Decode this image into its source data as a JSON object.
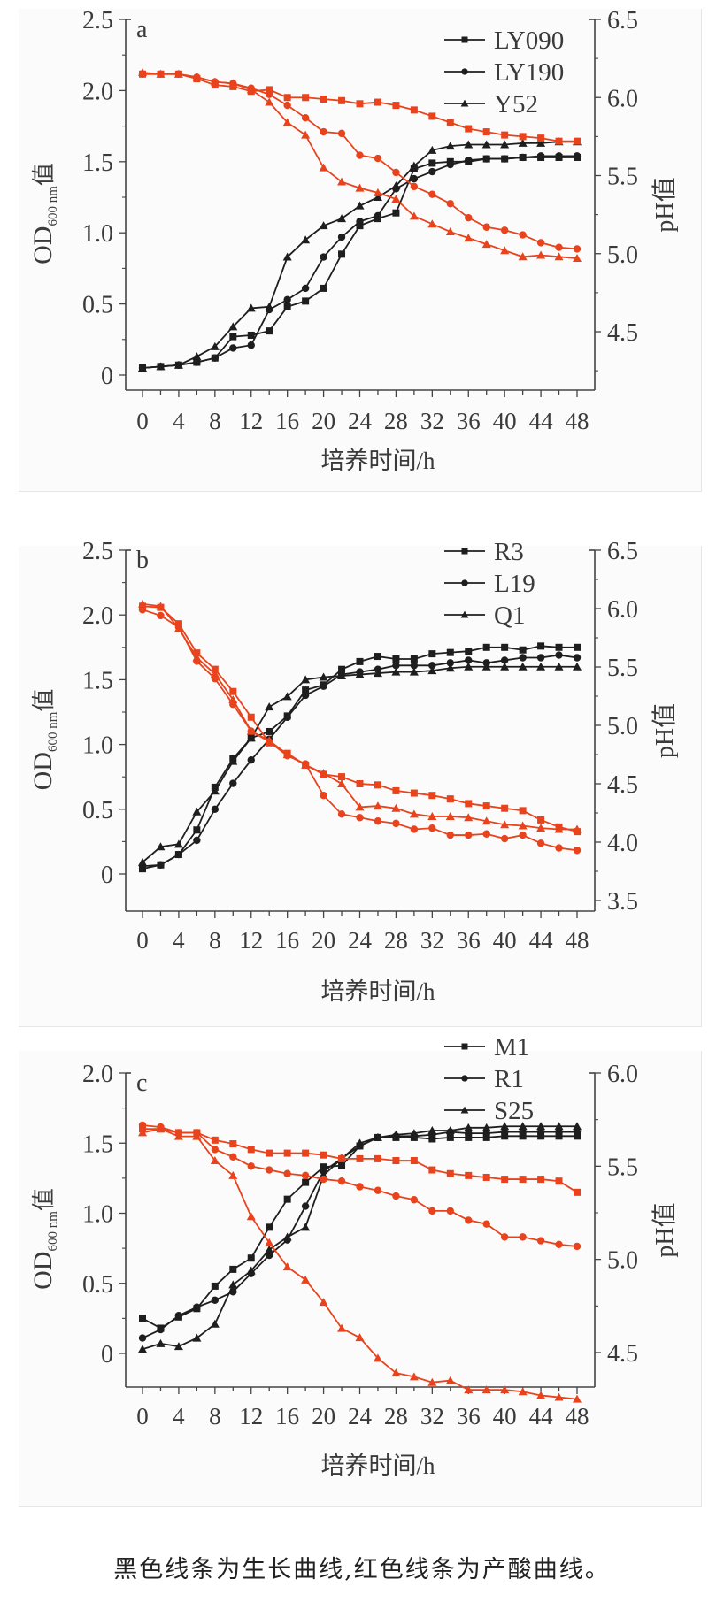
{
  "caption": "黑色线条为生长曲线,红色线条为产酸曲线。",
  "colors": {
    "growth": "#1e1e1e",
    "acid": "#e8431c",
    "axis": "#444444"
  },
  "chart_data": [
    {
      "type": "line",
      "panel_label": "a",
      "title": "",
      "xlabel": "培养时间/h",
      "ylabel_left": "OD600 nm值",
      "ylabel_left_main": "OD",
      "ylabel_left_sub": "600 nm",
      "ylabel_left_suffix": "值",
      "ylabel_right": "pH值",
      "x": [
        0,
        2,
        4,
        6,
        8,
        10,
        12,
        14,
        16,
        18,
        20,
        22,
        24,
        26,
        28,
        30,
        32,
        34,
        36,
        38,
        40,
        42,
        44,
        46,
        48
      ],
      "xticks": [
        0,
        4,
        8,
        12,
        16,
        20,
        24,
        28,
        32,
        36,
        40,
        44,
        48
      ],
      "ylim_left": [
        -0.1,
        2.5
      ],
      "yticks_left": [
        0,
        0.5,
        1.0,
        1.5,
        2.0,
        2.5
      ],
      "yticklabels_left": [
        "0",
        "0.5",
        "1.0",
        "1.5",
        "2.0",
        "2.5"
      ],
      "ylim_right": [
        4.125,
        6.5
      ],
      "yticks_right": [
        4.5,
        5.0,
        5.5,
        6.0,
        6.5
      ],
      "yticklabels_right": [
        "4.5",
        "5.0",
        "5.5",
        "6.0",
        "6.5"
      ],
      "legend": {
        "position": "top-right",
        "entries": [
          "LY090",
          "LY190",
          "Y52"
        ]
      },
      "series": [
        {
          "name": "LY090",
          "kind": "growth",
          "marker": "square",
          "axis": "left",
          "values": [
            0.05,
            0.06,
            0.07,
            0.09,
            0.12,
            0.27,
            0.28,
            0.31,
            0.48,
            0.52,
            0.61,
            0.85,
            1.05,
            1.1,
            1.14,
            1.45,
            1.49,
            1.5,
            1.5,
            1.52,
            1.52,
            1.53,
            1.53,
            1.53,
            1.53
          ]
        },
        {
          "name": "LY190",
          "kind": "growth",
          "marker": "circle",
          "axis": "left",
          "values": [
            0.05,
            0.06,
            0.07,
            0.09,
            0.12,
            0.19,
            0.21,
            0.46,
            0.53,
            0.61,
            0.83,
            0.97,
            1.08,
            1.12,
            1.31,
            1.38,
            1.43,
            1.48,
            1.51,
            1.52,
            1.52,
            1.53,
            1.54,
            1.54,
            1.54
          ]
        },
        {
          "name": "Y52",
          "kind": "growth",
          "marker": "triangle",
          "axis": "left",
          "values": [
            0.05,
            0.06,
            0.07,
            0.13,
            0.2,
            0.34,
            0.47,
            0.48,
            0.83,
            0.95,
            1.05,
            1.1,
            1.19,
            1.25,
            1.33,
            1.47,
            1.58,
            1.61,
            1.62,
            1.62,
            1.62,
            1.63,
            1.63,
            1.64,
            1.64
          ]
        },
        {
          "name": "LY090 pH",
          "kind": "acid",
          "marker": "square",
          "axis": "right",
          "values": [
            6.15,
            6.15,
            6.15,
            6.12,
            6.08,
            6.07,
            6.04,
            6.05,
            6.0,
            6.0,
            5.99,
            5.98,
            5.96,
            5.97,
            5.95,
            5.92,
            5.88,
            5.84,
            5.8,
            5.78,
            5.76,
            5.75,
            5.74,
            5.72,
            5.72
          ]
        },
        {
          "name": "LY190 pH",
          "kind": "acid",
          "marker": "circle",
          "axis": "right",
          "values": [
            6.15,
            6.15,
            6.15,
            6.13,
            6.1,
            6.09,
            6.06,
            6.02,
            5.95,
            5.87,
            5.78,
            5.77,
            5.63,
            5.61,
            5.52,
            5.43,
            5.38,
            5.32,
            5.23,
            5.17,
            5.15,
            5.12,
            5.07,
            5.04,
            5.03
          ]
        },
        {
          "name": "Y52 pH",
          "kind": "acid",
          "marker": "triangle",
          "axis": "right",
          "values": [
            6.16,
            6.15,
            6.15,
            6.13,
            6.1,
            6.09,
            6.05,
            5.97,
            5.84,
            5.76,
            5.55,
            5.46,
            5.42,
            5.39,
            5.35,
            5.24,
            5.19,
            5.14,
            5.1,
            5.06,
            5.02,
            4.98,
            4.99,
            4.98,
            4.97
          ]
        }
      ]
    },
    {
      "type": "line",
      "panel_label": "b",
      "title": "",
      "xlabel": "培养时间/h",
      "ylabel_left": "OD600 nm值",
      "ylabel_left_main": "OD",
      "ylabel_left_sub": "600 nm",
      "ylabel_left_suffix": "值",
      "ylabel_right": "pH值",
      "x": [
        0,
        2,
        4,
        6,
        8,
        10,
        12,
        14,
        16,
        18,
        20,
        22,
        24,
        26,
        28,
        30,
        32,
        34,
        36,
        38,
        40,
        42,
        44,
        46,
        48
      ],
      "xticks": [
        0,
        4,
        8,
        12,
        16,
        20,
        24,
        28,
        32,
        36,
        40,
        44,
        48
      ],
      "ylim_left": [
        -0.1,
        2.5
      ],
      "yticks_left": [
        0,
        0.5,
        1.0,
        1.5,
        2.0,
        2.5
      ],
      "yticklabels_left": [
        "0",
        "0.5",
        "1.0",
        "1.5",
        "2.0",
        "2.5"
      ],
      "ylim_right": [
        3.5,
        6.5
      ],
      "yticks_right": [
        3.5,
        4.0,
        4.5,
        5.0,
        5.5,
        6.0,
        6.5
      ],
      "yticklabels_right": [
        "3.5",
        "4.0",
        "4.5",
        "5.0",
        "5.5",
        "6.0",
        "6.5"
      ],
      "legend": {
        "position": "top-right",
        "entries": [
          "R3",
          "L19",
          "Q1"
        ]
      },
      "series": [
        {
          "name": "R3",
          "kind": "growth",
          "marker": "square",
          "axis": "left",
          "values": [
            0.04,
            0.07,
            0.15,
            0.34,
            0.67,
            0.89,
            1.05,
            1.1,
            1.22,
            1.42,
            1.46,
            1.58,
            1.64,
            1.68,
            1.66,
            1.66,
            1.7,
            1.71,
            1.72,
            1.75,
            1.75,
            1.73,
            1.76,
            1.75,
            1.75
          ]
        },
        {
          "name": "L19",
          "kind": "growth",
          "marker": "circle",
          "axis": "left",
          "values": [
            0.06,
            0.07,
            0.15,
            0.26,
            0.5,
            0.7,
            0.88,
            1.04,
            1.21,
            1.38,
            1.45,
            1.54,
            1.56,
            1.58,
            1.61,
            1.61,
            1.61,
            1.63,
            1.65,
            1.63,
            1.65,
            1.67,
            1.67,
            1.69,
            1.67
          ]
        },
        {
          "name": "Q1",
          "kind": "growth",
          "marker": "triangle",
          "axis": "left",
          "values": [
            0.09,
            0.21,
            0.23,
            0.48,
            0.64,
            0.87,
            1.05,
            1.29,
            1.37,
            1.5,
            1.52,
            1.53,
            1.54,
            1.55,
            1.56,
            1.56,
            1.57,
            1.59,
            1.6,
            1.6,
            1.6,
            1.6,
            1.6,
            1.6,
            1.6
          ]
        },
        {
          "name": "R3 pH",
          "kind": "acid",
          "marker": "square",
          "axis": "right",
          "values": [
            6.02,
            6.01,
            5.87,
            5.62,
            5.48,
            5.29,
            5.07,
            4.85,
            4.76,
            4.66,
            4.58,
            4.56,
            4.5,
            4.49,
            4.44,
            4.42,
            4.4,
            4.37,
            4.33,
            4.31,
            4.29,
            4.27,
            4.19,
            4.13,
            4.09
          ]
        },
        {
          "name": "L19 pH",
          "kind": "acid",
          "marker": "circle",
          "axis": "right",
          "values": [
            5.99,
            5.94,
            5.84,
            5.55,
            5.4,
            5.18,
            4.95,
            4.86,
            4.74,
            4.67,
            4.4,
            4.24,
            4.21,
            4.18,
            4.16,
            4.11,
            4.12,
            4.06,
            4.06,
            4.07,
            4.03,
            4.06,
            3.99,
            3.95,
            3.93
          ]
        },
        {
          "name": "Q1 pH",
          "kind": "acid",
          "marker": "triangle",
          "axis": "right",
          "values": [
            6.04,
            6.02,
            5.83,
            5.58,
            5.44,
            5.22,
            4.95,
            4.87,
            4.75,
            4.66,
            4.59,
            4.5,
            4.3,
            4.31,
            4.29,
            4.24,
            4.22,
            4.22,
            4.21,
            4.18,
            4.15,
            4.14,
            4.12,
            4.11,
            4.11
          ]
        }
      ]
    },
    {
      "type": "line",
      "panel_label": "c",
      "title": "",
      "xlabel": "培养时间/h",
      "ylabel_left": "OD600 nm值",
      "ylabel_left_main": "OD",
      "ylabel_left_sub": "600 nm",
      "ylabel_left_suffix": "值",
      "ylabel_right": "pH值",
      "x": [
        0,
        2,
        4,
        6,
        8,
        10,
        12,
        14,
        16,
        18,
        20,
        22,
        24,
        26,
        28,
        30,
        32,
        34,
        36,
        38,
        40,
        42,
        44,
        46,
        48
      ],
      "xticks": [
        0,
        4,
        8,
        12,
        16,
        20,
        24,
        28,
        32,
        36,
        40,
        44,
        48
      ],
      "ylim_left": [
        -0.1,
        2.0
      ],
      "yticks_left": [
        0,
        0.5,
        1.0,
        1.5,
        2.0
      ],
      "yticklabels_left": [
        "0",
        "0.5",
        "1.0",
        "1.5",
        "2.0"
      ],
      "ylim_right": [
        4.25,
        6.0
      ],
      "yticks_right": [
        4.5,
        5.0,
        5.5,
        6.0
      ],
      "yticklabels_right": [
        "4.5",
        "5.0",
        "5.5",
        "6.0"
      ],
      "legend": {
        "position": "top-right",
        "entries": [
          "M1",
          "R1",
          "S25"
        ]
      },
      "series": [
        {
          "name": "M1",
          "kind": "growth",
          "marker": "square",
          "axis": "left",
          "values": [
            0.25,
            0.18,
            0.26,
            0.32,
            0.48,
            0.6,
            0.68,
            0.9,
            1.1,
            1.22,
            1.33,
            1.34,
            1.48,
            1.54,
            1.54,
            1.54,
            1.53,
            1.54,
            1.54,
            1.54,
            1.55,
            1.55,
            1.55,
            1.55,
            1.55
          ]
        },
        {
          "name": "R1",
          "kind": "growth",
          "marker": "circle",
          "axis": "left",
          "values": [
            0.11,
            0.17,
            0.27,
            0.33,
            0.38,
            0.44,
            0.57,
            0.7,
            0.81,
            1.05,
            1.3,
            1.39,
            1.48,
            1.54,
            1.55,
            1.55,
            1.56,
            1.58,
            1.57,
            1.57,
            1.58,
            1.58,
            1.58,
            1.58,
            1.58
          ]
        },
        {
          "name": "S25",
          "kind": "growth",
          "marker": "triangle",
          "axis": "left",
          "values": [
            0.03,
            0.07,
            0.05,
            0.11,
            0.21,
            0.49,
            0.59,
            0.74,
            0.83,
            0.9,
            1.27,
            1.39,
            1.5,
            1.54,
            1.56,
            1.57,
            1.59,
            1.59,
            1.61,
            1.61,
            1.62,
            1.62,
            1.62,
            1.62,
            1.62
          ]
        },
        {
          "name": "M1 pH",
          "kind": "acid",
          "marker": "square",
          "axis": "right",
          "values": [
            5.7,
            5.7,
            5.68,
            5.68,
            5.64,
            5.62,
            5.59,
            5.57,
            5.57,
            5.57,
            5.56,
            5.54,
            5.54,
            5.54,
            5.53,
            5.53,
            5.48,
            5.46,
            5.45,
            5.44,
            5.43,
            5.43,
            5.43,
            5.42,
            5.36
          ]
        },
        {
          "name": "R1 pH",
          "kind": "acid",
          "marker": "circle",
          "axis": "right",
          "values": [
            5.72,
            5.71,
            5.68,
            5.68,
            5.59,
            5.55,
            5.5,
            5.48,
            5.46,
            5.45,
            5.43,
            5.42,
            5.39,
            5.37,
            5.34,
            5.32,
            5.26,
            5.26,
            5.21,
            5.19,
            5.12,
            5.12,
            5.1,
            5.08,
            5.07
          ]
        },
        {
          "name": "S25 pH",
          "kind": "acid",
          "marker": "triangle",
          "axis": "right",
          "values": [
            5.68,
            5.7,
            5.66,
            5.66,
            5.53,
            5.45,
            5.23,
            5.09,
            4.96,
            4.89,
            4.77,
            4.63,
            4.58,
            4.47,
            4.39,
            4.37,
            4.34,
            4.35,
            4.3,
            4.3,
            4.3,
            4.29,
            4.27,
            4.26,
            4.25
          ]
        }
      ]
    }
  ]
}
